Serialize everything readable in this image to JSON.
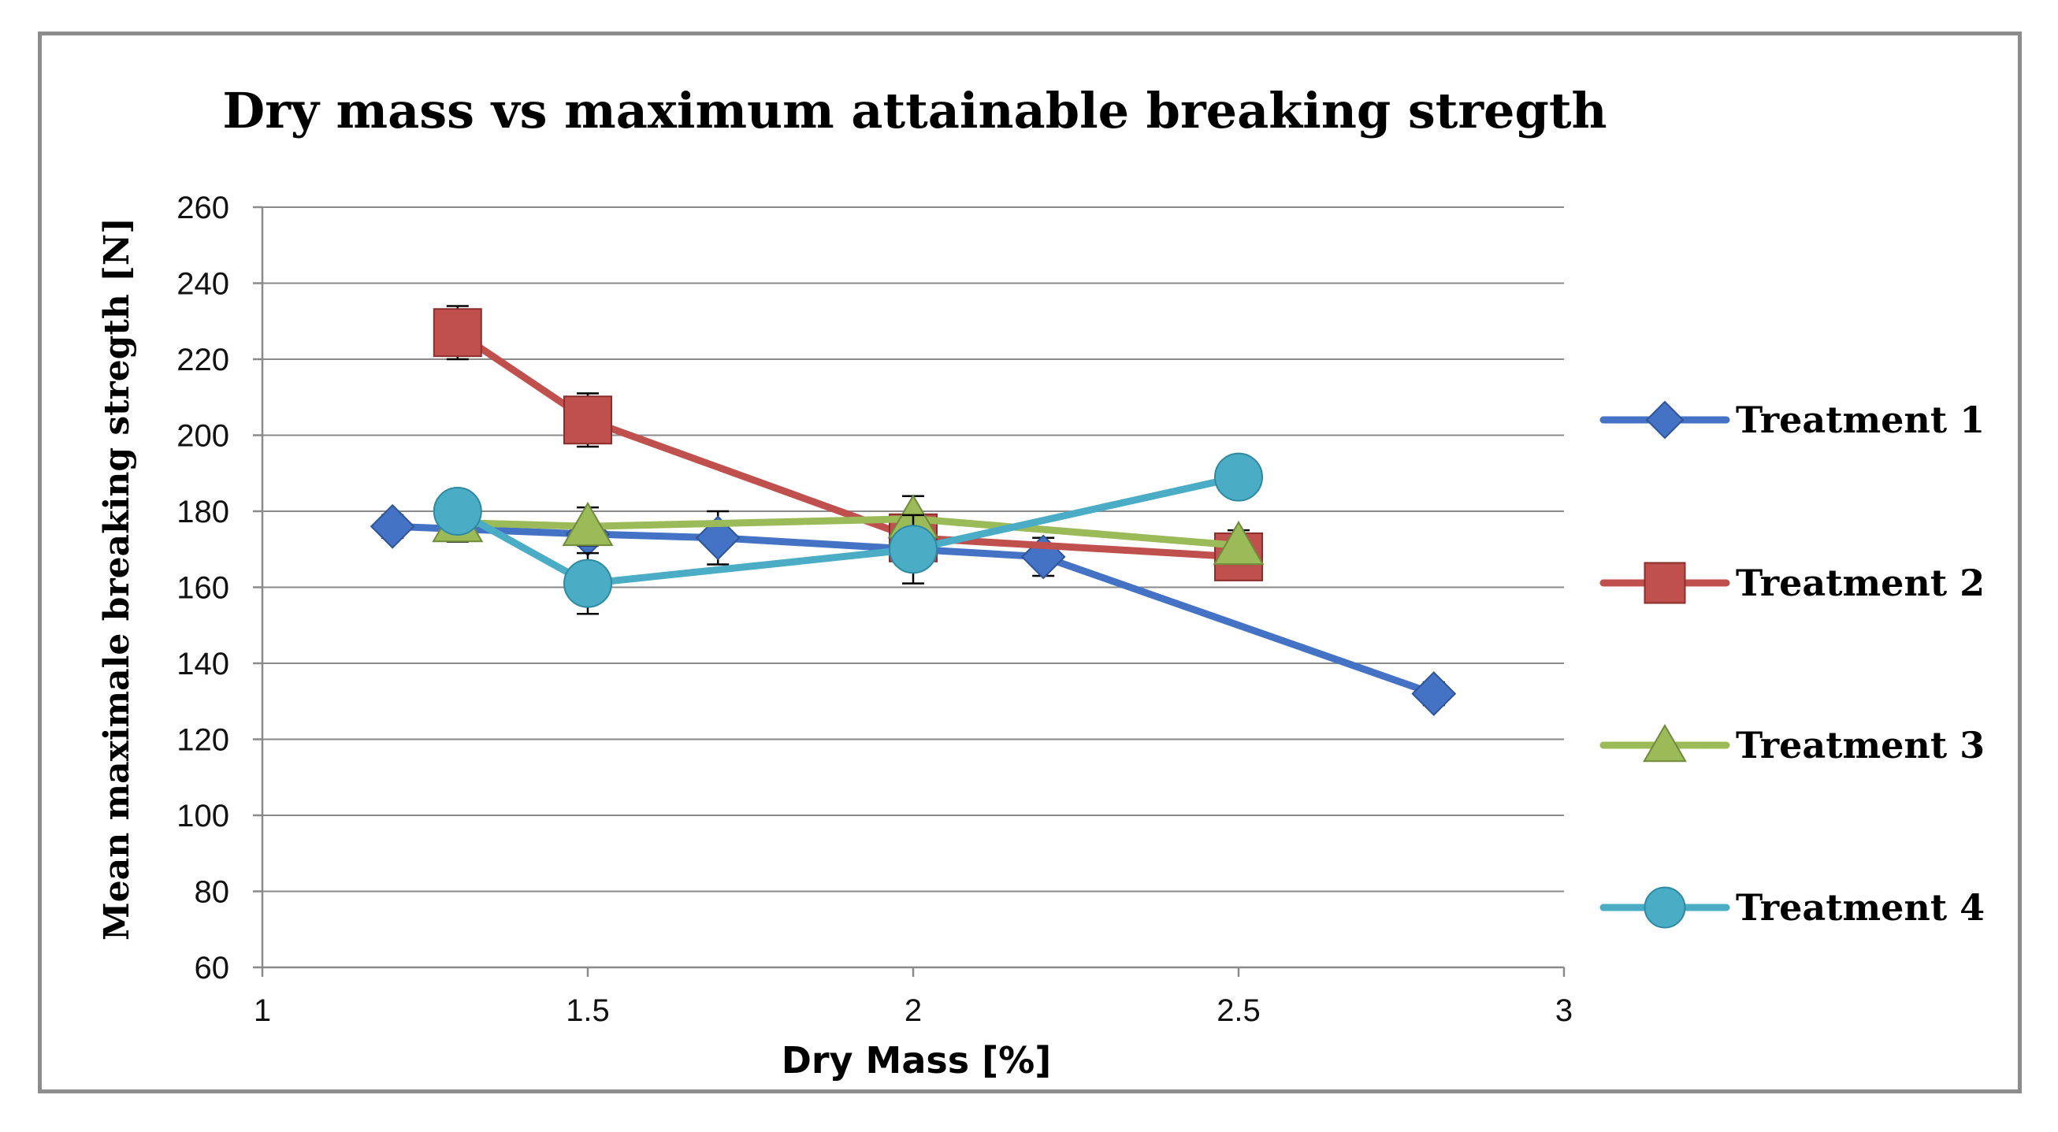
{
  "chart_data": {
    "type": "line",
    "title": "Dry mass vs maximum attainable breaking stregth",
    "xlabel": "Dry Mass [%]",
    "ylabel": "Mean maximale breaking stregth [N]",
    "xlim": [
      1,
      3
    ],
    "ylim": [
      60,
      260
    ],
    "xticks": [
      1,
      1.5,
      2,
      2.5,
      3
    ],
    "xtick_labels": [
      "1",
      "1.5",
      "2",
      "2.5",
      "3"
    ],
    "yticks": [
      60,
      80,
      100,
      120,
      140,
      160,
      180,
      200,
      220,
      240,
      260
    ],
    "ytick_labels": [
      "60",
      "80",
      "100",
      "120",
      "140",
      "160",
      "180",
      "200",
      "220",
      "240",
      "260"
    ],
    "grid": true,
    "legend_position": "right",
    "series": [
      {
        "name": "Treatment 1",
        "marker": "diamond",
        "color": "#4472C4",
        "x": [
          1.2,
          1.5,
          1.7,
          2.0,
          2.2,
          2.8
        ],
        "y": [
          176,
          174,
          173,
          170,
          168,
          132
        ],
        "err": [
          3,
          3,
          7,
          4,
          5,
          3
        ]
      },
      {
        "name": "Treatment 2",
        "marker": "square",
        "color": "#C0504D",
        "x": [
          1.3,
          1.5,
          2.0,
          2.5
        ],
        "y": [
          227,
          204,
          173,
          168
        ],
        "err": [
          7,
          7,
          6,
          6
        ]
      },
      {
        "name": "Treatment 3",
        "marker": "triangle",
        "color": "#9BBB59",
        "x": [
          1.3,
          1.5,
          2.0,
          2.5
        ],
        "y": [
          177,
          176,
          178,
          171
        ],
        "err": [
          5,
          5,
          6,
          4
        ]
      },
      {
        "name": "Treatment 4",
        "marker": "circle",
        "color": "#4BACC6",
        "x": [
          1.3,
          1.5,
          2.0,
          2.5
        ],
        "y": [
          180,
          161,
          170,
          189
        ],
        "err": [
          5,
          8,
          9,
          2
        ]
      }
    ]
  }
}
